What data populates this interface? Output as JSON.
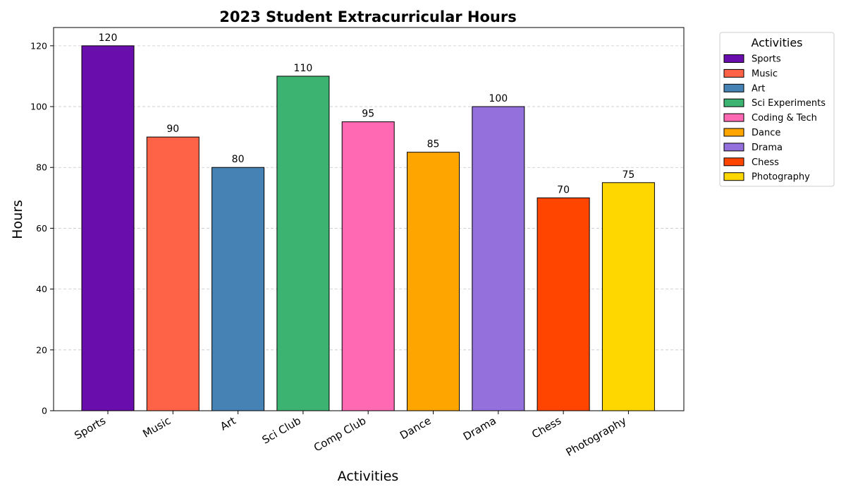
{
  "chart_data": {
    "type": "bar",
    "title": "2023 Student Extracurricular Hours",
    "xlabel": "Activities",
    "ylabel": "Hours",
    "categories": [
      "Sports",
      "Music",
      "Art",
      "Sci Club",
      "Comp Club",
      "Dance",
      "Drama",
      "Chess",
      "Photography"
    ],
    "values": [
      120,
      90,
      80,
      110,
      95,
      85,
      100,
      70,
      75
    ],
    "colors": [
      "#6a0dad",
      "#ff6347",
      "#4682b4",
      "#3cb371",
      "#ff69b4",
      "#ffa500",
      "#9370db",
      "#ff4500",
      "#ffd700"
    ],
    "ylim": [
      0,
      126
    ],
    "yticks": [
      0,
      20,
      40,
      60,
      80,
      100,
      120
    ],
    "grid": "y-dashed",
    "legend": {
      "title": "Activities",
      "placement": "outside-top-right",
      "entries": [
        "Sports",
        "Music",
        "Art",
        "Sci Experiments",
        "Coding & Tech",
        "Dance",
        "Drama",
        "Chess",
        "Photography"
      ]
    }
  }
}
